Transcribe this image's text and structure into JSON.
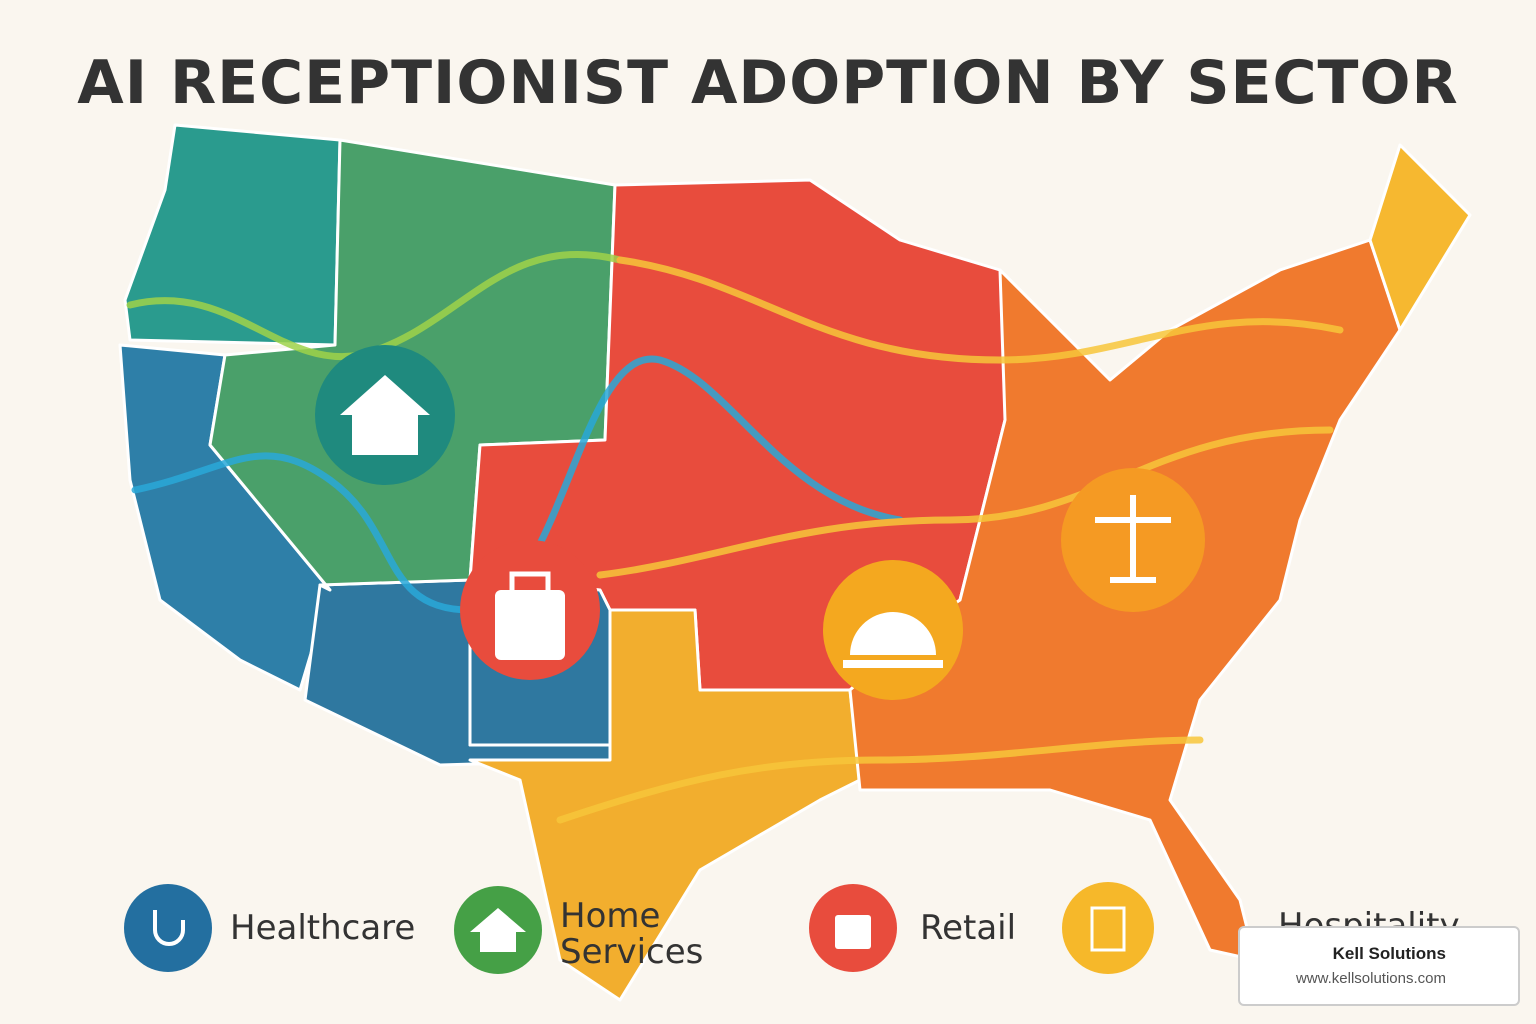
{
  "title": "AI RECEPTIONIST ADOPTION BY SECTOR",
  "legend": [
    {
      "label": "Healthcare"
    },
    {
      "label": "Home Services"
    },
    {
      "label": "Retail"
    },
    {
      "label": "Hospitality"
    }
  ],
  "watermark": {
    "name": "Kell Solutions",
    "url": "www.kellsolutions.com"
  }
}
